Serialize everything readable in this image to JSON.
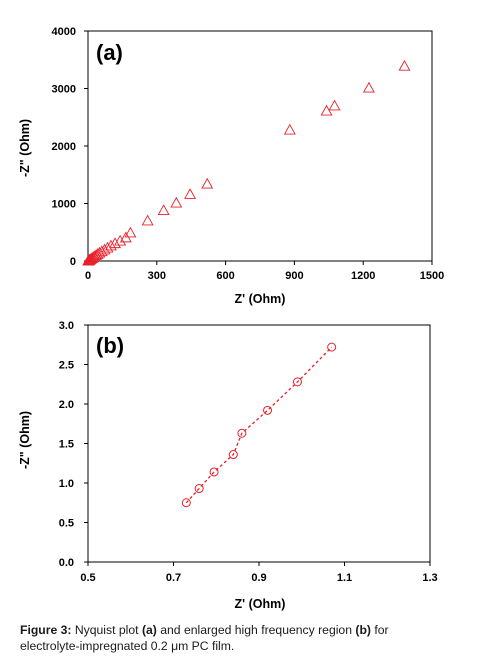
{
  "caption": {
    "label": "Figure 3:",
    "t1": "Nyquist plot",
    "a": "(a)",
    "t2": "and enlarged high frequency region",
    "b": "(b)",
    "t3": "for",
    "line2": "electrolyte-impregnated 0.2 μm PC film."
  },
  "chart_data": [
    {
      "type": "scatter",
      "panel_label": "(a)",
      "xlabel": "Z' (Ohm)",
      "ylabel": "-Z\" (Ohm)",
      "xlim": [
        0,
        1500
      ],
      "ylim": [
        0,
        4000
      ],
      "xticks": [
        "0",
        "300",
        "600",
        "900",
        "1200",
        "1500"
      ],
      "yticks": [
        "0",
        "1000",
        "2000",
        "3000",
        "4000"
      ],
      "marker": "open-triangle",
      "color": "#e8202a",
      "grid": false,
      "x": [
        1,
        2,
        3,
        5,
        8,
        12,
        17,
        22,
        28,
        35,
        42,
        50,
        60,
        72,
        85,
        100,
        118,
        140,
        165,
        185,
        260,
        330,
        385,
        445,
        520,
        880,
        1040,
        1075,
        1225,
        1380
      ],
      "y": [
        1,
        3,
        6,
        12,
        20,
        30,
        45,
        60,
        78,
        98,
        118,
        140,
        165,
        195,
        228,
        265,
        305,
        350,
        405,
        490,
        700,
        880,
        1010,
        1160,
        1340,
        2280,
        2610,
        2700,
        3010,
        3390
      ]
    },
    {
      "type": "scatter",
      "panel_label": "(b)",
      "xlabel": "Z' (Ohm)",
      "ylabel": "-Z\" (Ohm)",
      "xlim": [
        0.5,
        1.3
      ],
      "ylim": [
        0.0,
        3.0
      ],
      "xticks": [
        "0.5",
        "0.7",
        "0.9",
        "1.1",
        "1.3"
      ],
      "yticks": [
        "0.0",
        "0.5",
        "1.0",
        "1.5",
        "2.0",
        "2.5",
        "3.0"
      ],
      "marker": "open-circle",
      "color": "#e8202a",
      "line": "dashed",
      "grid": false,
      "x": [
        0.73,
        0.76,
        0.795,
        0.84,
        0.86,
        0.92,
        0.99,
        1.07
      ],
      "y": [
        0.75,
        0.93,
        1.14,
        1.36,
        1.63,
        1.92,
        2.28,
        2.72
      ]
    }
  ]
}
